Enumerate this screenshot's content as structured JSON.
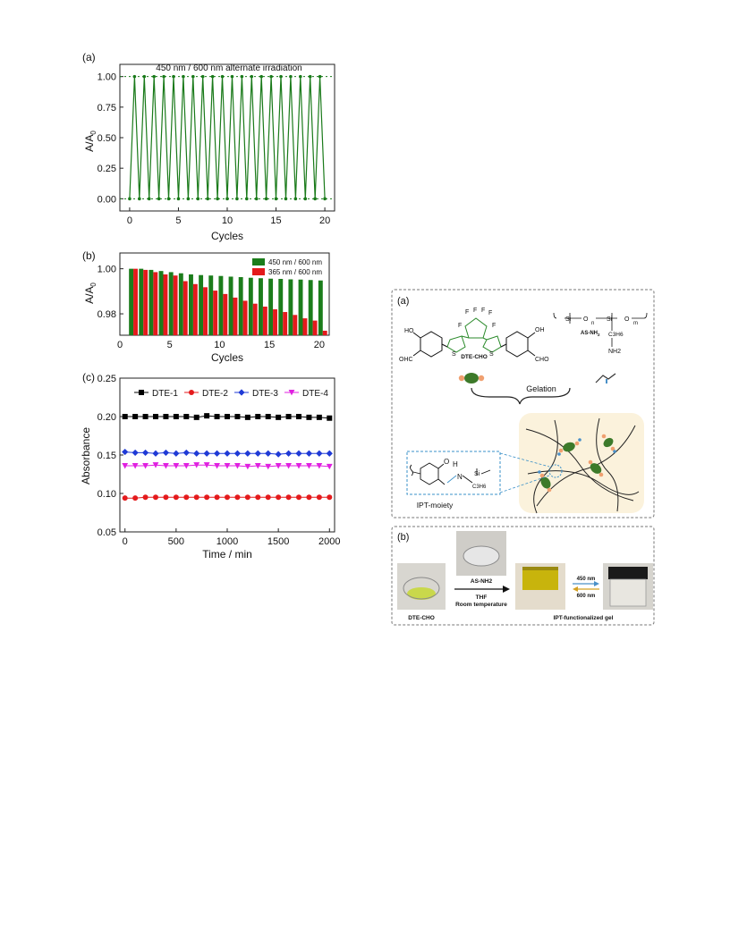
{
  "chart_data": [
    {
      "id": "a",
      "panel_label": "(a)",
      "type": "line",
      "title": "450 nm / 600 nm alternate irradiation",
      "xlabel": "Cycles",
      "ylabel_main": "A/A",
      "ylabel_sub": "0",
      "xlim": [
        -1,
        21
      ],
      "ylim": [
        -0.1,
        1.1
      ],
      "xticks": [
        0,
        5,
        10,
        15,
        20
      ],
      "yticks": [
        "0.00",
        "0.25",
        "0.50",
        "0.75",
        "1.00"
      ],
      "ytick_values": [
        0,
        0.25,
        0.5,
        0.75,
        1.0
      ],
      "color": "#1a7a1a",
      "guide_lines": [
        1.0,
        0.0
      ],
      "series": [
        {
          "x": [
            0,
            0.5,
            1,
            1.5,
            2,
            2.5,
            3,
            3.5,
            4,
            4.5,
            5,
            5.5,
            6,
            6.5,
            7,
            7.5,
            8,
            8.5,
            9,
            9.5,
            10,
            10.5,
            11,
            11.5,
            12,
            12.5,
            13,
            13.5,
            14,
            14.5,
            15,
            15.5,
            16,
            16.5,
            17,
            17.5,
            18,
            18.5,
            19,
            19.5,
            20
          ],
          "y": [
            0,
            1,
            0,
            1,
            0,
            1,
            0,
            1,
            0,
            1,
            0,
            1,
            0,
            1,
            0,
            1,
            0,
            1,
            0,
            1,
            0,
            1,
            0,
            1,
            0,
            1,
            0,
            1,
            0,
            1,
            0,
            1,
            0,
            1,
            0,
            1,
            0,
            1,
            0,
            1,
            0
          ]
        }
      ]
    },
    {
      "id": "b",
      "panel_label": "(b)",
      "type": "bar",
      "xlabel": "Cycles",
      "ylabel_main": "A/A",
      "ylabel_sub": "0",
      "xlim": [
        0,
        21
      ],
      "ylim": [
        0.9705,
        1.007
      ],
      "xticks": [
        0,
        5,
        10,
        15,
        20
      ],
      "yticks": [
        "0.98",
        "1.00"
      ],
      "ytick_values": [
        0.98,
        1.0
      ],
      "legend_position": "top-right",
      "categories": [
        1,
        2,
        3,
        4,
        5,
        6,
        7,
        8,
        9,
        10,
        11,
        12,
        13,
        14,
        15,
        16,
        17,
        18,
        19,
        20
      ],
      "series": [
        {
          "name": "450 nm / 600 nm",
          "color": "#1b7d1b",
          "values": [
            1.0,
            1.0,
            0.9995,
            0.999,
            0.9985,
            0.998,
            0.9975,
            0.9972,
            0.997,
            0.9968,
            0.9965,
            0.9963,
            0.996,
            0.9958,
            0.9956,
            0.9955,
            0.9953,
            0.9952,
            0.995,
            0.9948
          ]
        },
        {
          "name": "365 nm / 600 nm",
          "color": "#e41a1c",
          "values": [
            1.0,
            0.9995,
            0.9985,
            0.9975,
            0.997,
            0.9945,
            0.9932,
            0.9918,
            0.9903,
            0.9888,
            0.9872,
            0.9858,
            0.9845,
            0.9832,
            0.982,
            0.9808,
            0.9795,
            0.978,
            0.977,
            0.9725
          ]
        }
      ]
    },
    {
      "id": "c",
      "panel_label": "(c)",
      "type": "line",
      "xlabel": "Time / min",
      "ylabel_main": "Absorbance",
      "xlim": [
        -50,
        2050
      ],
      "ylim": [
        0.05,
        0.25
      ],
      "xticks": [
        0,
        500,
        1000,
        1500,
        2000
      ],
      "yticks": [
        "0.05",
        "0.10",
        "0.15",
        "0.20",
        "0.25"
      ],
      "ytick_values": [
        0.05,
        0.1,
        0.15,
        0.2,
        0.25
      ],
      "legend_position": "top",
      "x": [
        0,
        100,
        200,
        300,
        400,
        500,
        600,
        700,
        800,
        900,
        1000,
        1100,
        1200,
        1300,
        1400,
        1500,
        1600,
        1700,
        1800,
        1900,
        2000
      ],
      "series": [
        {
          "name": "DTE-1",
          "color": "#000000",
          "marker": "square",
          "values": [
            0.2,
            0.2,
            0.2,
            0.2,
            0.2,
            0.2,
            0.2,
            0.199,
            0.201,
            0.2,
            0.2,
            0.2,
            0.199,
            0.2,
            0.2,
            0.199,
            0.2,
            0.2,
            0.199,
            0.199,
            0.198
          ]
        },
        {
          "name": "DTE-2",
          "color": "#e41a1c",
          "marker": "circle",
          "values": [
            0.094,
            0.094,
            0.095,
            0.095,
            0.095,
            0.095,
            0.095,
            0.095,
            0.095,
            0.095,
            0.095,
            0.095,
            0.095,
            0.095,
            0.095,
            0.095,
            0.095,
            0.095,
            0.095,
            0.095,
            0.095
          ]
        },
        {
          "name": "DTE-3",
          "color": "#1f3ad6",
          "marker": "diamond",
          "values": [
            0.154,
            0.153,
            0.153,
            0.152,
            0.153,
            0.152,
            0.153,
            0.152,
            0.152,
            0.152,
            0.152,
            0.152,
            0.152,
            0.152,
            0.152,
            0.151,
            0.152,
            0.152,
            0.152,
            0.152,
            0.152
          ]
        },
        {
          "name": "DTE-4",
          "color": "#e020e0",
          "marker": "triangle-down",
          "values": [
            0.136,
            0.136,
            0.136,
            0.137,
            0.136,
            0.136,
            0.136,
            0.137,
            0.137,
            0.136,
            0.136,
            0.136,
            0.135,
            0.136,
            0.135,
            0.136,
            0.136,
            0.136,
            0.136,
            0.136,
            0.135
          ]
        }
      ]
    }
  ],
  "scheme": {
    "a": {
      "panel_label": "(a)",
      "dte_label": "DTE-CHO",
      "as_label": "AS-NH",
      "as_label_sub": "2",
      "ho_left": "HO",
      "ohc_left": "OHC",
      "oh_right": "OH",
      "cho_right": "CHO",
      "s_atom": "S",
      "f_atom": "F",
      "si_atom": "Si",
      "o_atom": "O",
      "n_sub": "n",
      "m_sub": "m",
      "c3h6": "C3H6",
      "nh2": "NH2",
      "gelation_label": "Gelation",
      "moiety_label": "IPT-moiety",
      "moiety_o": "O",
      "moiety_h": "H",
      "moiety_n": "N",
      "moiety_si": "Si",
      "moiety_c3h6": "C3H6"
    },
    "b": {
      "panel_label": "(b)",
      "left_caption": "DTE-CHO",
      "reagent": "AS-NH2",
      "solvent": "THF",
      "condition": "Room temperature",
      "product_caption": "IPT-functionalized gel",
      "forward": "450 nm",
      "backward": "600 nm",
      "forward_color": "#4a90c8",
      "backward_color": "#d4a020"
    }
  }
}
